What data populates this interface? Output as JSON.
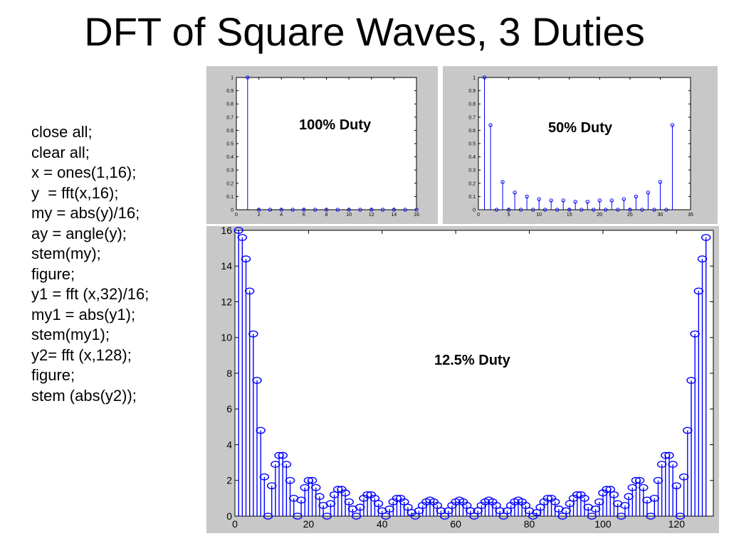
{
  "slide": {
    "title": "DFT of Square Waves, 3 Duties",
    "code_lines": [
      "close all;",
      "clear all;",
      "x = ones(1,16);",
      "y  = fft(x,16);",
      "my = abs(y)/16;",
      "ay = angle(y);",
      "stem(my);",
      "figure;",
      "y1 = fft (x,32)/16;",
      "my1 = abs(y1);",
      "stem(my1);",
      "y2= fft (x,128);",
      "figure;",
      "stem (abs(y2));"
    ]
  },
  "colors": {
    "stem": "#0000ff",
    "panel": "#c8c8c8",
    "axes_bg": "#ffffff"
  },
  "chart_data": [
    {
      "type": "stem",
      "annotation": "100% Duty",
      "x": [
        1,
        2,
        3,
        4,
        5,
        6,
        7,
        8,
        9,
        10,
        11,
        12,
        13,
        14,
        15,
        16
      ],
      "values": [
        1,
        0,
        0,
        0,
        0,
        0,
        0,
        0,
        0,
        0,
        0,
        0,
        0,
        0,
        0,
        0
      ],
      "xlim": [
        0,
        16
      ],
      "ylim": [
        0,
        1
      ],
      "xticks": [
        0,
        2,
        4,
        6,
        8,
        10,
        12,
        14,
        16
      ],
      "yticks": [
        0,
        0.1,
        0.2,
        0.3,
        0.4,
        0.5,
        0.6,
        0.7,
        0.8,
        0.9,
        1
      ],
      "grid": false
    },
    {
      "type": "stem",
      "annotation": "50% Duty",
      "x": [
        1,
        2,
        3,
        4,
        5,
        6,
        7,
        8,
        9,
        10,
        11,
        12,
        13,
        14,
        15,
        16,
        17,
        18,
        19,
        20,
        21,
        22,
        23,
        24,
        25,
        26,
        27,
        28,
        29,
        30,
        31,
        32
      ],
      "values": [
        1,
        0.64,
        0,
        0.21,
        0,
        0.13,
        0,
        0.1,
        0,
        0.08,
        0,
        0.07,
        0,
        0.07,
        0,
        0.06,
        0,
        0.06,
        0,
        0.07,
        0,
        0.07,
        0,
        0.08,
        0,
        0.1,
        0,
        0.13,
        0,
        0.21,
        0,
        0.64
      ],
      "xlim": [
        0,
        35
      ],
      "ylim": [
        0,
        1
      ],
      "xticks": [
        0,
        5,
        10,
        15,
        20,
        25,
        30,
        35
      ],
      "yticks": [
        0,
        0.1,
        0.2,
        0.3,
        0.4,
        0.5,
        0.6,
        0.7,
        0.8,
        0.9,
        1
      ],
      "grid": false
    },
    {
      "type": "stem",
      "annotation": "12.5% Duty",
      "x_start": 1,
      "values": [
        16,
        15.6,
        14.4,
        12.6,
        10.2,
        7.6,
        4.8,
        2.2,
        0,
        1.7,
        2.9,
        3.4,
        3.4,
        2.9,
        2.0,
        1.0,
        0,
        0.9,
        1.6,
        2.0,
        2.0,
        1.6,
        1.1,
        0.6,
        0,
        0.7,
        1.2,
        1.5,
        1.5,
        1.3,
        0.8,
        0.4,
        0,
        0.5,
        1.0,
        1.2,
        1.2,
        1.0,
        0.7,
        0.3,
        0,
        0.4,
        0.8,
        1.0,
        1.0,
        0.8,
        0.5,
        0.2,
        0,
        0.3,
        0.6,
        0.8,
        0.9,
        0.8,
        0.6,
        0.3,
        0,
        0.3,
        0.6,
        0.8,
        0.9,
        0.8,
        0.6,
        0.3,
        0,
        0.3,
        0.6,
        0.8,
        0.9,
        0.8,
        0.6,
        0.3,
        0,
        0.3,
        0.6,
        0.8,
        0.9,
        0.8,
        0.6,
        0.3,
        0,
        0.2,
        0.5,
        0.8,
        1.0,
        1.0,
        0.8,
        0.4,
        0,
        0.3,
        0.7,
        1.0,
        1.2,
        1.2,
        1.0,
        0.5,
        0,
        0.4,
        0.8,
        1.3,
        1.5,
        1.5,
        1.2,
        0.7,
        0,
        0.6,
        1.1,
        1.6,
        2.0,
        2.0,
        1.6,
        0.9,
        0,
        1.0,
        2.0,
        2.9,
        3.4,
        3.4,
        2.9,
        1.7,
        0,
        2.2,
        4.8,
        7.6,
        10.2,
        12.6,
        14.4,
        15.6
      ],
      "xlim": [
        0,
        130
      ],
      "ylim": [
        0,
        16
      ],
      "xticks": [
        0,
        20,
        40,
        60,
        80,
        100,
        120
      ],
      "yticks": [
        0,
        2,
        4,
        6,
        8,
        10,
        12,
        14,
        16
      ],
      "grid": false
    }
  ]
}
